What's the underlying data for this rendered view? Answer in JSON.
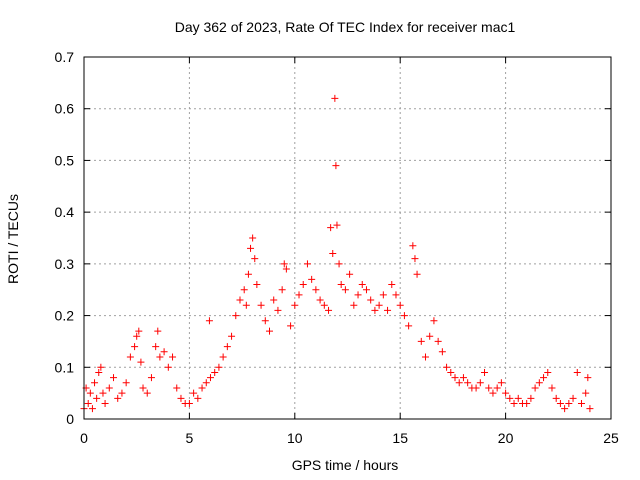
{
  "chart_data": {
    "type": "scatter",
    "title": "Day 362 of 2023, Rate Of TEC Index for receiver mac1",
    "xlabel": "GPS time / hours",
    "ylabel": "ROTI / TECUs",
    "xlim": [
      0,
      25
    ],
    "ylim": [
      0,
      0.7
    ],
    "xticks": [
      "0",
      "5",
      "10",
      "15",
      "20",
      "25"
    ],
    "yticks": [
      "0",
      "0.1",
      "0.2",
      "0.3",
      "0.4",
      "0.5",
      "0.6",
      "0.7"
    ],
    "xtick_values": [
      0,
      5,
      10,
      15,
      20,
      25
    ],
    "ytick_values": [
      0,
      0.1,
      0.2,
      0.3,
      0.4,
      0.5,
      0.6,
      0.7
    ],
    "grid": true,
    "marker": "+",
    "point_color": "#ff0000",
    "series": [
      {
        "points": [
          [
            0.0,
            0.02
          ],
          [
            0.1,
            0.06
          ],
          [
            0.2,
            0.03
          ],
          [
            0.3,
            0.05
          ],
          [
            0.4,
            0.02
          ],
          [
            0.5,
            0.07
          ],
          [
            0.6,
            0.04
          ],
          [
            0.7,
            0.09
          ],
          [
            0.8,
            0.1
          ],
          [
            0.9,
            0.05
          ],
          [
            1.0,
            0.03
          ],
          [
            1.2,
            0.06
          ],
          [
            1.4,
            0.08
          ],
          [
            1.6,
            0.04
          ],
          [
            1.8,
            0.05
          ],
          [
            2.0,
            0.07
          ],
          [
            2.2,
            0.12
          ],
          [
            2.4,
            0.14
          ],
          [
            2.5,
            0.16
          ],
          [
            2.6,
            0.17
          ],
          [
            2.7,
            0.11
          ],
          [
            2.8,
            0.06
          ],
          [
            3.0,
            0.05
          ],
          [
            3.2,
            0.08
          ],
          [
            3.4,
            0.14
          ],
          [
            3.5,
            0.17
          ],
          [
            3.6,
            0.12
          ],
          [
            3.8,
            0.13
          ],
          [
            4.0,
            0.1
          ],
          [
            4.2,
            0.12
          ],
          [
            4.4,
            0.06
          ],
          [
            4.6,
            0.04
          ],
          [
            4.8,
            0.03
          ],
          [
            5.0,
            0.03
          ],
          [
            5.2,
            0.05
          ],
          [
            5.4,
            0.04
          ],
          [
            5.6,
            0.06
          ],
          [
            5.8,
            0.07
          ],
          [
            5.95,
            0.19
          ],
          [
            6.0,
            0.08
          ],
          [
            6.2,
            0.09
          ],
          [
            6.4,
            0.1
          ],
          [
            6.6,
            0.12
          ],
          [
            6.8,
            0.14
          ],
          [
            7.0,
            0.16
          ],
          [
            7.2,
            0.2
          ],
          [
            7.4,
            0.23
          ],
          [
            7.6,
            0.25
          ],
          [
            7.7,
            0.22
          ],
          [
            7.8,
            0.28
          ],
          [
            7.9,
            0.33
          ],
          [
            8.0,
            0.35
          ],
          [
            8.1,
            0.31
          ],
          [
            8.2,
            0.26
          ],
          [
            8.4,
            0.22
          ],
          [
            8.6,
            0.19
          ],
          [
            8.8,
            0.17
          ],
          [
            9.0,
            0.23
          ],
          [
            9.2,
            0.21
          ],
          [
            9.4,
            0.25
          ],
          [
            9.5,
            0.3
          ],
          [
            9.6,
            0.29
          ],
          [
            9.8,
            0.18
          ],
          [
            10.0,
            0.22
          ],
          [
            10.2,
            0.24
          ],
          [
            10.4,
            0.26
          ],
          [
            10.6,
            0.3
          ],
          [
            10.8,
            0.27
          ],
          [
            11.0,
            0.25
          ],
          [
            11.2,
            0.23
          ],
          [
            11.4,
            0.22
          ],
          [
            11.6,
            0.21
          ],
          [
            11.7,
            0.37
          ],
          [
            11.8,
            0.32
          ],
          [
            11.9,
            0.62
          ],
          [
            11.95,
            0.49
          ],
          [
            12.0,
            0.375
          ],
          [
            12.1,
            0.3
          ],
          [
            12.2,
            0.26
          ],
          [
            12.4,
            0.25
          ],
          [
            12.6,
            0.28
          ],
          [
            12.8,
            0.22
          ],
          [
            13.0,
            0.24
          ],
          [
            13.2,
            0.26
          ],
          [
            13.4,
            0.25
          ],
          [
            13.6,
            0.23
          ],
          [
            13.8,
            0.21
          ],
          [
            14.0,
            0.22
          ],
          [
            14.2,
            0.24
          ],
          [
            14.4,
            0.21
          ],
          [
            14.6,
            0.26
          ],
          [
            14.8,
            0.24
          ],
          [
            15.0,
            0.22
          ],
          [
            15.2,
            0.2
          ],
          [
            15.4,
            0.18
          ],
          [
            15.6,
            0.335
          ],
          [
            15.7,
            0.31
          ],
          [
            15.8,
            0.28
          ],
          [
            16.0,
            0.15
          ],
          [
            16.2,
            0.12
          ],
          [
            16.4,
            0.16
          ],
          [
            16.6,
            0.19
          ],
          [
            16.8,
            0.15
          ],
          [
            17.0,
            0.13
          ],
          [
            17.2,
            0.1
          ],
          [
            17.4,
            0.09
          ],
          [
            17.6,
            0.08
          ],
          [
            17.8,
            0.07
          ],
          [
            18.0,
            0.08
          ],
          [
            18.2,
            0.07
          ],
          [
            18.4,
            0.06
          ],
          [
            18.6,
            0.06
          ],
          [
            18.8,
            0.07
          ],
          [
            19.0,
            0.09
          ],
          [
            19.2,
            0.06
          ],
          [
            19.4,
            0.05
          ],
          [
            19.6,
            0.06
          ],
          [
            19.8,
            0.07
          ],
          [
            20.0,
            0.05
          ],
          [
            20.2,
            0.04
          ],
          [
            20.4,
            0.03
          ],
          [
            20.6,
            0.04
          ],
          [
            20.8,
            0.03
          ],
          [
            21.0,
            0.03
          ],
          [
            21.2,
            0.04
          ],
          [
            21.4,
            0.06
          ],
          [
            21.6,
            0.07
          ],
          [
            21.8,
            0.08
          ],
          [
            22.0,
            0.09
          ],
          [
            22.2,
            0.06
          ],
          [
            22.4,
            0.04
          ],
          [
            22.6,
            0.03
          ],
          [
            22.8,
            0.02
          ],
          [
            23.0,
            0.03
          ],
          [
            23.2,
            0.04
          ],
          [
            23.4,
            0.09
          ],
          [
            23.6,
            0.03
          ],
          [
            23.8,
            0.05
          ],
          [
            23.9,
            0.08
          ],
          [
            24.0,
            0.02
          ]
        ]
      }
    ]
  }
}
